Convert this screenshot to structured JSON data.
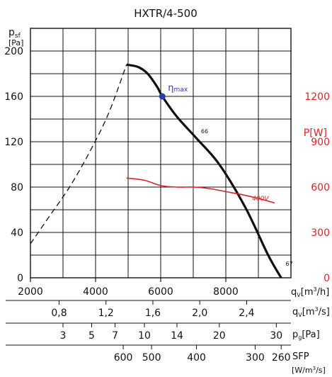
{
  "chart_data": {
    "type": "line",
    "title": "HXTR/4-500",
    "x_axis": {
      "label": "qv[m3/h]",
      "unit_main": "q",
      "unit_sub": "V",
      "unit_rest": "[m",
      "unit_sup": "3",
      "unit_end": "/h]",
      "range": [
        2000,
        10000
      ],
      "ticks": [
        2000,
        4000,
        6000,
        8000
      ],
      "tick_labels": [
        "2000",
        "4000",
        "6000",
        "8000"
      ]
    },
    "y_left": {
      "label_main": "p",
      "label_sub": "sf",
      "label_unit": "[Pa]",
      "range": [
        0,
        220
      ],
      "ticks": [
        0,
        40,
        80,
        120,
        160,
        200
      ],
      "tick_labels": [
        "0",
        "40",
        "80",
        "120",
        "160",
        "200"
      ]
    },
    "y_right": {
      "label": "P[W]",
      "range": [
        0,
        1650
      ],
      "ticks": [
        0,
        300,
        600,
        900,
        1200
      ],
      "tick_labels": [
        "0",
        "300",
        "600",
        "900",
        "1200"
      ],
      "color": "#d8232a"
    },
    "grid": true,
    "series": [
      {
        "name": "",
        "axis": "left",
        "style": "dashed",
        "color": "#111111",
        "x": [
          2000,
          2600,
          3200,
          3800,
          4400,
          4950
        ],
        "y": [
          30,
          55,
          80,
          110,
          145,
          188
        ]
      },
      {
        "name": "",
        "axis": "left",
        "style": "solid",
        "color": "#111111",
        "x": [
          4950,
          5300,
          5600,
          5900,
          6050,
          6500,
          7100,
          7800,
          8600,
          9300,
          9700
        ],
        "y": [
          188,
          186,
          180,
          168,
          160,
          142,
          123,
          100,
          62,
          20,
          0
        ]
      },
      {
        "name": "400V",
        "axis": "right",
        "style": "solid",
        "color": "#d8232a",
        "x": [
          4950,
          5500,
          6000,
          6500,
          7000,
          7500,
          8000,
          8500,
          9000,
          9500
        ],
        "y": [
          660,
          645,
          610,
          600,
          600,
          590,
          570,
          550,
          525,
          495
        ]
      }
    ],
    "annotations": [
      {
        "text": "η",
        "sub": "max",
        "x": 6050,
        "y": 160
      },
      {
        "text": "66",
        "x": 7150,
        "y": 125
      },
      {
        "text": "67",
        "x": 9750,
        "y": 8
      },
      {
        "text": "400V",
        "x": 9200,
        "y": 73
      }
    ],
    "extra_scales": [
      {
        "label_main": "q",
        "label_sub": "V",
        "label_rest": "[m",
        "label_sup": "3",
        "label_end": "/s]",
        "ticks": [
          {
            "label": "0,8",
            "x": 2880
          },
          {
            "label": "1,2",
            "x": 4320
          },
          {
            "label": "1,6",
            "x": 5760
          },
          {
            "label": "2,0",
            "x": 7200
          },
          {
            "label": "2,4",
            "x": 8640
          }
        ]
      },
      {
        "label_main": "p",
        "label_sub": "g",
        "label_rest": "[Pa]",
        "label_sup": "",
        "label_end": "",
        "ticks": [
          {
            "label": "3",
            "x": 3000
          },
          {
            "label": "5",
            "x": 3880
          },
          {
            "label": "7",
            "x": 4600
          },
          {
            "label": "10",
            "x": 5500
          },
          {
            "label": "14",
            "x": 6500
          },
          {
            "label": "20",
            "x": 7800
          },
          {
            "label": "30",
            "x": 9550
          }
        ]
      },
      {
        "label_main": "SFP",
        "label_sub": "",
        "label_rest": "",
        "label_sup": "",
        "label_end": "",
        "label_unit": "[W/m3/s]",
        "label_unit_pre": "[W/m",
        "label_unit_sup": "3",
        "label_unit_post": "/s]",
        "ticks": [
          {
            "label": "600",
            "x": 4850
          },
          {
            "label": "500",
            "x": 5720
          },
          {
            "label": "400",
            "x": 7100
          },
          {
            "label": "300",
            "x": 8900
          },
          {
            "label": "260",
            "x": 9700
          }
        ]
      }
    ]
  }
}
